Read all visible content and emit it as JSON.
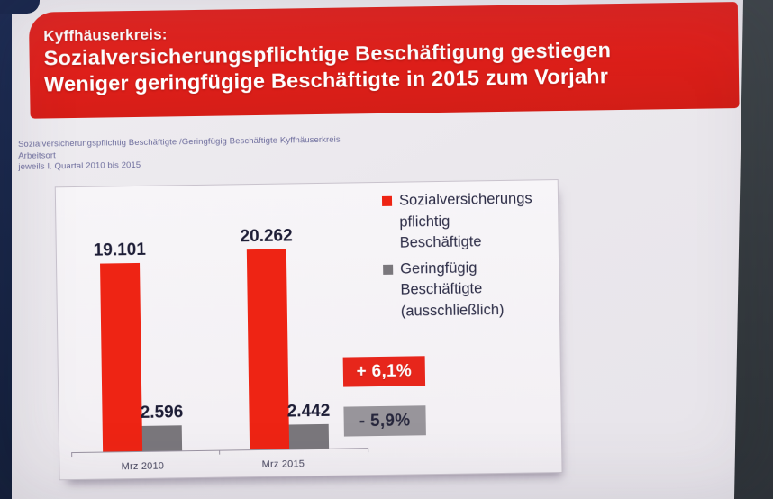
{
  "header": {
    "kicker": "Kyffhäuserkreis:",
    "line1": "Sozialversicherungspflichtige Beschäftigung gestiegen",
    "line2": "Weniger geringfügige Beschäftigte in 2015 zum Vorjahr",
    "bg_color": "#de201a",
    "text_color": "#ffffff"
  },
  "subtitle": {
    "line1": "Sozialversicherungspflichtig Beschäftigte /Geringfügig Beschäftigte Kyffhäuserkreis",
    "line2": "Arbeitsort",
    "line3": "jeweils I. Quartal 2010 bis 2015",
    "color": "#6c6c9c"
  },
  "chart_data": {
    "type": "bar",
    "categories": [
      "Mrz 2010",
      "Mrz 2015"
    ],
    "series": [
      {
        "name": "Sozialversicherungs\npflichtig\nBeschäftigte",
        "values": [
          19101,
          20262
        ],
        "value_labels": [
          "19.101",
          "20.262"
        ],
        "color": "#ee2414",
        "change_badge": "+ 6,1%"
      },
      {
        "name": "Geringfügig\nBeschäftigte\n(ausschließlich)",
        "values": [
          2596,
          2442
        ],
        "value_labels": [
          "2.596",
          "2.442"
        ],
        "color": "#7a777c",
        "change_badge": "- 5,9%"
      }
    ],
    "title": "",
    "xlabel": "",
    "ylabel": "",
    "ylim": [
      0,
      20262
    ],
    "grid": false,
    "legend_position": "top-right",
    "value_label_color": "#1d1d36",
    "badge_red_bg": "#e7261b",
    "badge_gray_bg": "#98959b"
  }
}
